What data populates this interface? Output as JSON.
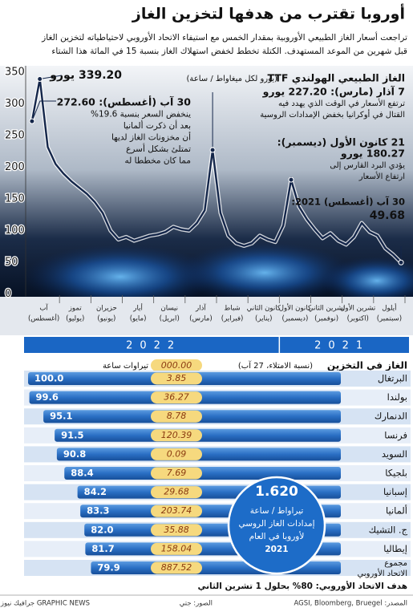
{
  "header": {
    "title": "أوروبا تقترب من هدفها لتخزين الغاز",
    "subtitle": [
      "تراجعت أسعار الغاز الطبيعي الأوروبية بمقدار الخمس مع استيفاء الاتحاد الأوروبي لاحتياطياته لتخزين الغاز",
      "قبل شهرين من الموعد المستهدف. الكتلة تخطط لخفض استهلاك الغاز بنسبة 15 في المائة هذا الشتاء"
    ]
  },
  "chart_data": [
    {
      "type": "line",
      "title": "الغاز الطبيعي الهولندي TTF",
      "subtitle": "(يورو لكل ميغاواط / ساعة)",
      "categories": [
        [
          "أيلول",
          "(سبتمبر)"
        ],
        null,
        null,
        null,
        [
          "تشرين الأول",
          "(اكتوبر)"
        ],
        null,
        null,
        null,
        [
          "تشرين الثاني",
          "(نوفمبر)"
        ],
        null,
        null,
        null,
        [
          "كانون الأول",
          "(ديسمبر)"
        ],
        null,
        null,
        null,
        [
          "كانون الثاني",
          "(يناير)"
        ],
        null,
        null,
        null,
        [
          "شباط",
          "(فبراير)"
        ],
        null,
        null,
        null,
        [
          "آذار",
          "(مارس)"
        ],
        null,
        null,
        null,
        [
          "نيسان",
          "(ابريل)"
        ],
        null,
        null,
        null,
        [
          "أيار",
          "(مايو)"
        ],
        null,
        null,
        null,
        [
          "حزيران",
          "(يونيو)"
        ],
        null,
        null,
        null,
        [
          "تموز",
          "(يوليو)"
        ],
        null,
        null,
        null,
        [
          "آب",
          "(أغسطس)"
        ],
        null,
        null,
        null
      ],
      "years": [
        "2021",
        "2022"
      ],
      "series": [
        {
          "color": "#14264a",
          "values": [
            49.68,
            62,
            72,
            92,
            98,
            112,
            90,
            78,
            84,
            96,
            88,
            102,
            118,
            138,
            180.27,
            108,
            82,
            86,
            92,
            80,
            76,
            80,
            92,
            128,
            227.2,
            132,
            112,
            100,
            102,
            106,
            98,
            94,
            92,
            88,
            84,
            90,
            86,
            100,
            128,
            145,
            158,
            168,
            178,
            190,
            205,
            232,
            339.2,
            272.6
          ]
        }
      ],
      "ylim": [
        0,
        350
      ],
      "yticks": [
        0,
        50,
        100,
        150,
        200,
        250,
        300,
        350
      ],
      "grid": false,
      "annotations": [
        [
          "339.20 يورو"
        ],
        [
          "30 آب (أغسطس): 272.60",
          "ينخفض السعر بنسبة 19.6%",
          "بعد أن ذكرت ألمانيا",
          "أن مخزونات الغاز لديها",
          "تمتلئ بشكل أسرع",
          "مما كان مخططا له"
        ],
        [
          "7 آذار (مارس): 227.20 يورو",
          "ترتفع الأسعار في الوقت الذي يهدد فيه",
          "القتال في أوكرانيا بخفض الإمدادات الروسية"
        ],
        [
          "21 كانون الأول (ديسمبر):",
          "180.27 يورو",
          "يؤدي البرد القارس إلى",
          "ارتفاع الأسعار"
        ],
        [
          "30 آب (أغسطس) 2021:",
          "49.68"
        ]
      ]
    },
    {
      "type": "hbar",
      "title": "الغاز في التخزين",
      "subtitle": "(نسبة الامتلاء، 27 آب)",
      "categories": [
        "البرتغال",
        "بولندا",
        "الدنمارك",
        "فرنسا",
        "السويد",
        "بلجيكا",
        "إسبانيا",
        "ألمانيا",
        "ج. التشيك",
        "إيطاليا",
        [
          "مجموع",
          "الاتحاد الأوروبي"
        ]
      ],
      "values": [
        100.0,
        99.6,
        95.1,
        91.5,
        90.8,
        88.4,
        84.2,
        83.3,
        82.0,
        81.7,
        79.9
      ],
      "value_labels": [
        "100.0",
        "99.6",
        "95.1",
        "91.5",
        "90.8",
        "88.4",
        "84.2",
        "83.3",
        "82.0",
        "81.7",
        "79.9"
      ],
      "color": "#2a6fc4",
      "xlim": [
        0,
        100
      ],
      "twh": {
        "name": "تيراوات ساعة",
        "header": "000.00",
        "values": [
          3.85,
          36.27,
          8.78,
          120.39,
          0.09,
          7.69,
          29.68,
          203.74,
          35.88,
          158.04,
          887.52
        ]
      },
      "callout": {
        "value": "1.620",
        "lines": [
          "تيراواط / ساعة",
          "إمدادات الغاز الروسي",
          "لأوروبا في العام",
          "2021"
        ]
      },
      "target": "هدف الاتحاد الأوروبي: 80% بحلول 1 تشرين الثاني"
    }
  ],
  "footer": {
    "source": "المصدر: AGSI, Bloomberg, Bruegel",
    "photo": "الصور: جتي",
    "credit": "GRAPHIC NEWS جرافيك نيوز"
  }
}
